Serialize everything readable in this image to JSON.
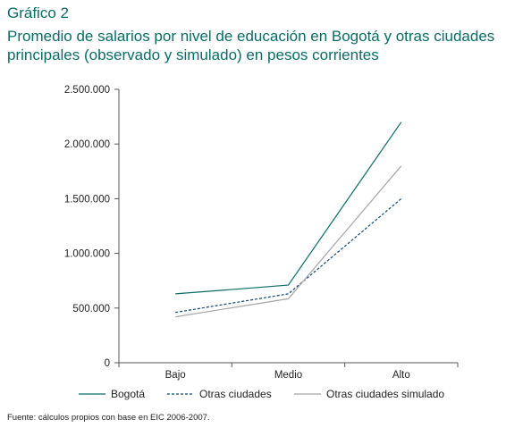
{
  "figure_label": "Gráfico 2",
  "title": "Promedio de salarios por nivel de educación en Bogotá y otras ciudades principales (observado y simulado) en pesos corrientes",
  "source": "Fuente: cálculos propios con base en EIC 2006-2007.",
  "chart_data": {
    "type": "line",
    "categories": [
      "Bajo",
      "Medio",
      "Alto"
    ],
    "ylim": [
      0,
      2500000
    ],
    "yticks": [
      0,
      500000,
      1000000,
      1500000,
      2000000,
      2500000
    ],
    "ytick_labels": [
      "0",
      "500.000",
      "1.000.000",
      "1.500.000",
      "2.000.000",
      "2.500.000"
    ],
    "grid": false,
    "legend_position": "bottom",
    "series": [
      {
        "name": "Bogotá",
        "values": [
          630000,
          710000,
          2200000
        ],
        "color": "#0a6b66",
        "style": "solid"
      },
      {
        "name": "Otras ciudades",
        "values": [
          460000,
          630000,
          1500000
        ],
        "color": "#0a4a6e",
        "style": "dashed"
      },
      {
        "name": "Otras ciudades simulado",
        "values": [
          420000,
          585000,
          1800000
        ],
        "color": "#a6a6a6",
        "style": "solid"
      }
    ]
  }
}
